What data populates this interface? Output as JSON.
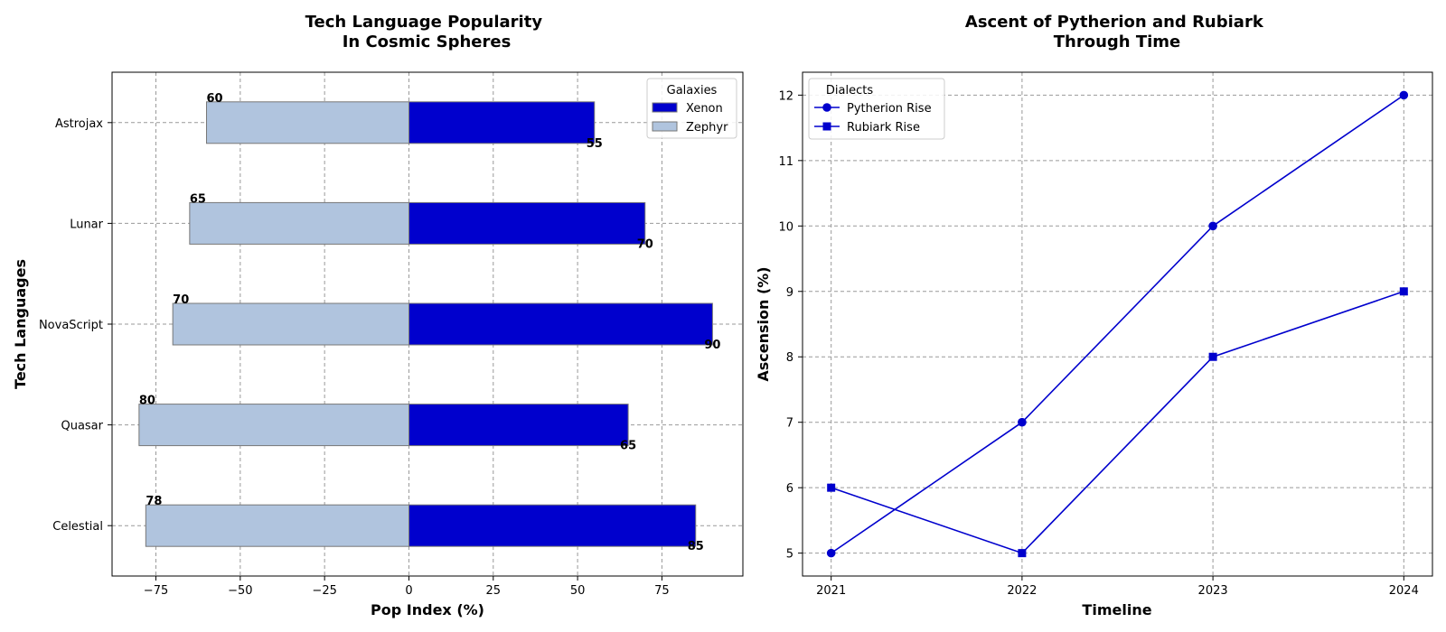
{
  "chart_data": [
    {
      "type": "bar",
      "orientation": "horizontal",
      "title": "Tech Language Popularity\nIn Cosmic Spheres",
      "xlabel": "Pop Index (%)",
      "ylabel": "Tech Languages",
      "categories": [
        "Celestial",
        "Quasar",
        "NovaScript",
        "Lunar",
        "Astrojax"
      ],
      "series": [
        {
          "name": "Xenon",
          "values": [
            85,
            65,
            90,
            70,
            55
          ],
          "color": "#0000CD"
        },
        {
          "name": "Zephyr",
          "values": [
            -78,
            -80,
            -70,
            -65,
            -60
          ],
          "color": "#B0C4DE"
        }
      ],
      "data_labels": {
        "Xenon": [
          "85",
          "65",
          "90",
          "70",
          "55"
        ],
        "Zephyr": [
          "78",
          "80",
          "70",
          "65",
          "60"
        ]
      },
      "xlim": [
        -88,
        99
      ],
      "xticks": [
        -75,
        -50,
        -25,
        0,
        25,
        50,
        75
      ],
      "xtick_labels": [
        "−75",
        "−50",
        "−25",
        "0",
        "25",
        "50",
        "75"
      ],
      "grid": true,
      "legend": {
        "title": "Galaxies",
        "placement": "top-right",
        "entries": [
          "Xenon",
          "Zephyr"
        ]
      }
    },
    {
      "type": "line",
      "title": "Ascent of Pytherion and Rubiark\nThrough Time",
      "xlabel": "Timeline",
      "ylabel": "Ascension (%)",
      "x": [
        2021,
        2022,
        2023,
        2024
      ],
      "xtick_labels": [
        "2021",
        "2022",
        "2023",
        "2024"
      ],
      "series": [
        {
          "name": "Pytherion Rise",
          "values": [
            5,
            7,
            10,
            12
          ],
          "marker": "circle",
          "color": "#0000CD"
        },
        {
          "name": "Rubiark Rise",
          "values": [
            6,
            5,
            8,
            9
          ],
          "marker": "square",
          "color": "#0000CD"
        }
      ],
      "xlim": [
        2020.85,
        2024.15
      ],
      "ylim": [
        4.65,
        12.35
      ],
      "yticks": [
        5,
        6,
        7,
        8,
        9,
        10,
        11,
        12
      ],
      "ytick_labels": [
        "5",
        "6",
        "7",
        "8",
        "9",
        "10",
        "11",
        "12"
      ],
      "grid": true,
      "legend": {
        "title": "Dialects",
        "placement": "top-left",
        "entries": [
          "Pytherion Rise",
          "Rubiark Rise"
        ]
      }
    }
  ]
}
